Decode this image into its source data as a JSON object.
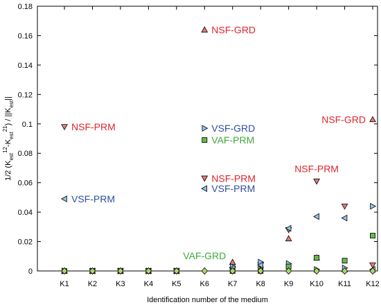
{
  "chart_data": {
    "type": "scatter",
    "title": "",
    "xlabel": "Identification number of the medium",
    "ylabel": "1/2 (K_est^12 - K_est^21) / ||K_est||",
    "categories": [
      "K1",
      "K2",
      "K3",
      "K4",
      "K5",
      "K6",
      "K7",
      "K8",
      "K9",
      "K10",
      "K11",
      "K12"
    ],
    "ylim": [
      0,
      0.18
    ],
    "yticks": [
      "0",
      "0.02",
      "0.04",
      "0.06",
      "0.08",
      "0.1",
      "0.12",
      "0.14",
      "0.16",
      "0.18"
    ],
    "grid": false,
    "legend": "none",
    "series": [
      {
        "key": "NSF-GRD",
        "marker": "triangle-up",
        "color": "#e87a73",
        "values": [
          0,
          0,
          0,
          0,
          0,
          0.164,
          0.006,
          0.004,
          0.022,
          0.009,
          0.001,
          0.103
        ]
      },
      {
        "key": "NSF-PRM",
        "marker": "triangle-down",
        "color": "#e87a73",
        "values": [
          0.098,
          0,
          0,
          0,
          0,
          0.063,
          0.001,
          0.004,
          0.028,
          0.061,
          0.044,
          0.004
        ]
      },
      {
        "key": "VSF-GRD",
        "marker": "triangle-right",
        "color": "#8fc4ea",
        "values": [
          0,
          0,
          0,
          0,
          0,
          0.097,
          0.003,
          0.006,
          0.005,
          0.001,
          0.002,
          0.044
        ]
      },
      {
        "key": "VSF-PRM",
        "marker": "triangle-left",
        "color": "#8fc4ea",
        "values": [
          0.049,
          0,
          0,
          0,
          0,
          0.056,
          0.002,
          0.004,
          0.029,
          0.037,
          0.036,
          0.001
        ]
      },
      {
        "key": "VAF-PRM",
        "marker": "square",
        "color": "#66b84c",
        "values": [
          0,
          0,
          0,
          0,
          0,
          0.089,
          0,
          0,
          0.003,
          0.009,
          0.007,
          0.024
        ]
      },
      {
        "key": "VAF-GRD",
        "marker": "diamond",
        "color": "#a9d86a",
        "values": [
          0,
          0,
          0,
          0,
          0,
          0,
          0,
          0,
          0,
          0,
          0,
          0
        ]
      }
    ],
    "annotations": [
      {
        "text": "NSF-GRD",
        "color": "#e0242c",
        "anchor_x": "K6",
        "anchor_y": 0.164,
        "side": "right"
      },
      {
        "text": "NSF-PRM",
        "color": "#e0242c",
        "anchor_x": "K1",
        "anchor_y": 0.098,
        "side": "right"
      },
      {
        "text": "VSF-PRM",
        "color": "#2d4e9e",
        "anchor_x": "K1",
        "anchor_y": 0.049,
        "side": "right"
      },
      {
        "text": "VSF-GRD",
        "color": "#2d4e9e",
        "anchor_x": "K6",
        "anchor_y": 0.097,
        "side": "right"
      },
      {
        "text": "VAF-PRM",
        "color": "#3ea83a",
        "anchor_x": "K6",
        "anchor_y": 0.089,
        "side": "right"
      },
      {
        "text": "NSF-PRM",
        "color": "#e0242c",
        "anchor_x": "K6",
        "anchor_y": 0.063,
        "side": "right"
      },
      {
        "text": "VSF-PRM",
        "color": "#2d4e9e",
        "anchor_x": "K6",
        "anchor_y": 0.056,
        "side": "right"
      },
      {
        "text": "NSF-PRM",
        "color": "#e0242c",
        "anchor_x": "K10",
        "anchor_y": 0.061,
        "side": "above"
      },
      {
        "text": "NSF-GRD",
        "color": "#e0242c",
        "anchor_x": "K12",
        "anchor_y": 0.103,
        "side": "left"
      },
      {
        "text": "VAF-GRD",
        "color": "#3ea83a",
        "anchor_x": "K6",
        "anchor_y": 0.008,
        "side": "center"
      }
    ]
  }
}
